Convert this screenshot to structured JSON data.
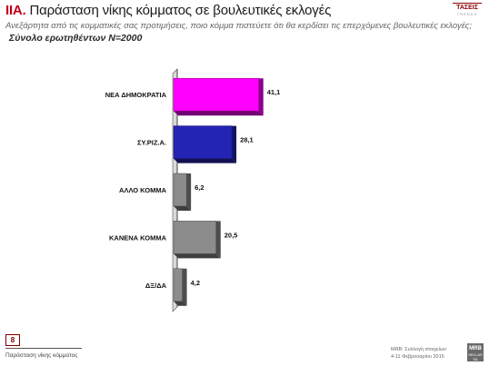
{
  "header": {
    "title_num": "ΙΙΑ.",
    "title_text": "Παράσταση νίκης κόμματος σε βουλευτικές εκλογές",
    "subtitle": "Ανεξάρτητα από τις κομματικές σας προτιμήσεις, ποιο κόμμα πιστεύετε ότι θα κερδίσει τις επερχόμενες βουλευτικές εκλογές;",
    "base": "Σύνολο ερωτηθέντων N=2000"
  },
  "brand": {
    "name": "ΤΑΣΕΙΣ",
    "tagline": "TRENDS"
  },
  "footer": {
    "page": "8",
    "left_text": "Παράσταση νίκης κόμματος",
    "right_line1": "MRB: Συλλογή στοιχείων",
    "right_line2": "4-11 Φεβρουαρίου 2015",
    "logo": "MRB",
    "logo_sub": "HELLAS SA"
  },
  "chart_data": {
    "type": "bar",
    "orientation": "horizontal",
    "categories": [
      "ΝΕΑ ΔΗΜΟΚΡΑΤΙΑ",
      "ΣΥ.ΡΙΖ.Α.",
      "ΑΛΛΟ ΚΟΜΜΑ",
      "ΚΑΝΕΝΑ ΚΟΜΜΑ",
      "ΔΞ/ΔΑ"
    ],
    "values": [
      41.1,
      28.1,
      6.2,
      20.5,
      4.2
    ],
    "value_labels": [
      "41,1",
      "28,1",
      "6,2",
      "20,5",
      "4,2"
    ],
    "colors": [
      "#ff00ff",
      "#2424b4",
      "#8c8c8c",
      "#8c8c8c",
      "#8c8c8c"
    ],
    "xlim": [
      0,
      100
    ],
    "grid": false,
    "legend": false
  }
}
